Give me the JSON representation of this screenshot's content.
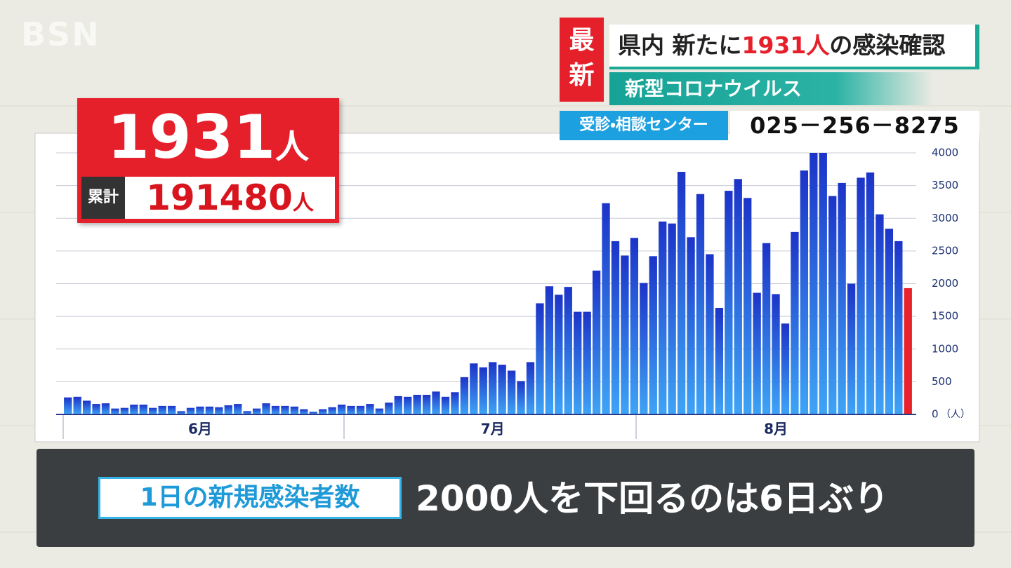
{
  "logo": "BSN",
  "banner": {
    "tag_top": "最",
    "tag_bottom": "新",
    "headline_pre": "県内 新たに",
    "headline_number": "1931人",
    "headline_post": "の感染確認",
    "subtitle": "新型コロナウイルス",
    "hotline_label": "受診・相談センター",
    "hotline_number": "025－256－8275"
  },
  "summary": {
    "today": "1931",
    "today_unit": "人",
    "total_label": "累計",
    "total": "191480",
    "total_unit": "人"
  },
  "caption": {
    "label": "1日の新規感染者数",
    "text": "2000人を下回るのは6日ぶり"
  },
  "chart_data": {
    "type": "bar",
    "categories": [
      null,
      null,
      null,
      null,
      null,
      null,
      null,
      null,
      null,
      null,
      null,
      null,
      null,
      null,
      "6月",
      null,
      null,
      null,
      null,
      null,
      null,
      null,
      null,
      null,
      null,
      null,
      null,
      null,
      null,
      null,
      null,
      null,
      null,
      null,
      null,
      null,
      null,
      null,
      null,
      null,
      null,
      null,
      null,
      null,
      null,
      "7月",
      null,
      null,
      null,
      null,
      null,
      null,
      null,
      null,
      null,
      null,
      null,
      null,
      null,
      null,
      null,
      null,
      null,
      null,
      null,
      null,
      null,
      null,
      null,
      null,
      null,
      null,
      null,
      null,
      null,
      "8月",
      null,
      null,
      null,
      null,
      null,
      null,
      null,
      null,
      null,
      null,
      null,
      null,
      null,
      null
    ],
    "series": [
      {
        "color": "#1c34c8",
        "values": [
          260,
          270,
          210,
          160,
          170,
          90,
          100,
          150,
          150,
          100,
          130,
          130,
          50,
          100,
          120,
          120,
          110,
          140,
          160,
          50,
          90,
          170,
          130,
          130,
          120,
          80,
          40,
          80,
          110,
          150,
          130,
          130,
          160,
          90,
          180,
          280,
          270,
          300,
          300,
          350,
          270,
          340,
          570,
          780,
          720,
          800,
          760,
          670,
          510,
          800,
          1700,
          1960,
          1830,
          1950,
          1570,
          1570,
          2200,
          3230,
          2650,
          2430,
          2700,
          2010,
          2420,
          2950,
          2920,
          3710,
          2710,
          3370,
          2450,
          1630,
          3420,
          3600,
          3310,
          1860,
          2620,
          1840,
          1390,
          2790,
          3730,
          4000,
          4000,
          3340,
          3540,
          2000,
          3620,
          3700,
          3060,
          2840,
          2650,
          null
        ]
      },
      {
        "color": "#e8232b",
        "values": [
          null,
          null,
          null,
          null,
          null,
          null,
          null,
          null,
          null,
          null,
          null,
          null,
          null,
          null,
          null,
          null,
          null,
          null,
          null,
          null,
          null,
          null,
          null,
          null,
          null,
          null,
          null,
          null,
          null,
          null,
          null,
          null,
          null,
          null,
          null,
          null,
          null,
          null,
          null,
          null,
          null,
          null,
          null,
          null,
          null,
          null,
          null,
          null,
          null,
          null,
          null,
          null,
          null,
          null,
          null,
          null,
          null,
          null,
          null,
          null,
          null,
          null,
          null,
          null,
          null,
          null,
          null,
          null,
          null,
          null,
          null,
          null,
          null,
          null,
          null,
          null,
          null,
          null,
          null,
          null,
          null,
          null,
          null,
          null,
          null,
          null,
          null,
          null,
          null,
          1931
        ]
      }
    ],
    "ylim": [
      0,
      4000
    ],
    "yticks": [
      0,
      500,
      1000,
      1500,
      2000,
      2500,
      3000,
      3500,
      4000
    ],
    "y_unit": "（人）",
    "grid": true
  }
}
